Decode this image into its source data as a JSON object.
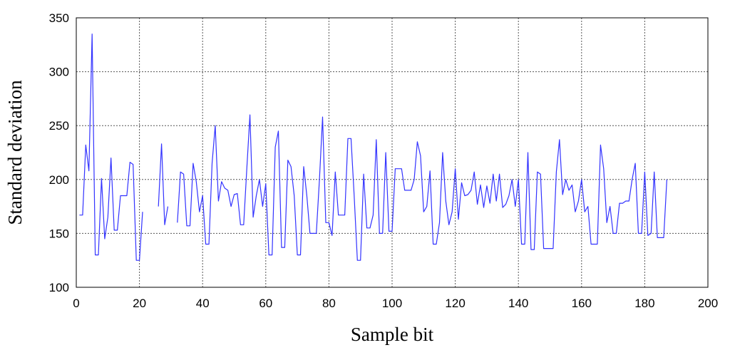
{
  "chart_data": {
    "type": "line",
    "xlabel": "Sample bit",
    "ylabel": "Standard deviation",
    "xlim": [
      0,
      200
    ],
    "ylim": [
      100,
      350
    ],
    "xticks": [
      0,
      20,
      40,
      60,
      80,
      100,
      120,
      140,
      160,
      180,
      200
    ],
    "yticks": [
      100,
      150,
      200,
      250,
      300,
      350
    ],
    "grid": true,
    "series_color": "#3333ff",
    "segments": [
      [
        [
          1,
          167
        ],
        [
          2,
          167
        ],
        [
          3,
          232
        ],
        [
          4,
          208
        ],
        [
          5,
          335
        ],
        [
          6,
          130
        ],
        [
          7,
          130
        ],
        [
          8,
          201
        ],
        [
          9,
          145
        ],
        [
          10,
          165
        ],
        [
          11,
          220
        ],
        [
          12,
          153
        ],
        [
          13,
          153
        ],
        [
          14,
          185
        ],
        [
          15,
          185
        ],
        [
          16,
          185
        ],
        [
          17,
          216
        ],
        [
          18,
          214
        ],
        [
          19,
          125
        ],
        [
          20,
          125
        ],
        [
          21,
          170
        ]
      ],
      [
        [
          26,
          175
        ],
        [
          27,
          233
        ],
        [
          28,
          158
        ],
        [
          29,
          175
        ]
      ],
      [
        [
          32,
          160
        ],
        [
          33,
          207
        ],
        [
          34,
          205
        ],
        [
          35,
          157
        ],
        [
          36,
          157
        ],
        [
          37,
          215
        ],
        [
          38,
          198
        ],
        [
          39,
          170
        ],
        [
          40,
          185
        ],
        [
          41,
          140
        ],
        [
          42,
          140
        ],
        [
          43,
          215
        ],
        [
          44,
          250
        ],
        [
          45,
          180
        ],
        [
          46,
          198
        ],
        [
          47,
          192
        ],
        [
          48,
          190
        ],
        [
          49,
          175
        ],
        [
          50,
          186
        ],
        [
          51,
          187
        ],
        [
          52,
          158
        ],
        [
          53,
          158
        ],
        [
          54,
          210
        ],
        [
          55,
          260
        ],
        [
          56,
          165
        ],
        [
          57,
          185
        ],
        [
          58,
          200
        ],
        [
          59,
          175
        ],
        [
          60,
          196
        ],
        [
          61,
          130
        ],
        [
          62,
          130
        ],
        [
          63,
          230
        ],
        [
          64,
          245
        ],
        [
          65,
          137
        ],
        [
          66,
          137
        ],
        [
          67,
          218
        ],
        [
          68,
          212
        ],
        [
          69,
          185
        ],
        [
          70,
          130
        ],
        [
          71,
          130
        ],
        [
          72,
          212
        ],
        [
          73,
          185
        ],
        [
          74,
          150
        ],
        [
          75,
          150
        ],
        [
          76,
          150
        ],
        [
          77,
          200
        ],
        [
          78,
          258
        ],
        [
          79,
          160
        ],
        [
          80,
          160
        ],
        [
          81,
          148
        ],
        [
          82,
          207
        ],
        [
          83,
          167
        ],
        [
          84,
          167
        ],
        [
          85,
          167
        ],
        [
          86,
          238
        ],
        [
          87,
          238
        ],
        [
          88,
          185
        ],
        [
          89,
          125
        ],
        [
          90,
          125
        ],
        [
          91,
          205
        ],
        [
          92,
          155
        ],
        [
          93,
          155
        ],
        [
          94,
          167
        ],
        [
          95,
          237
        ],
        [
          96,
          150
        ],
        [
          97,
          150
        ],
        [
          98,
          225
        ],
        [
          99,
          152
        ],
        [
          100,
          152
        ],
        [
          101,
          210
        ],
        [
          102,
          210
        ],
        [
          103,
          210
        ],
        [
          104,
          190
        ],
        [
          105,
          190
        ],
        [
          106,
          190
        ],
        [
          107,
          200
        ],
        [
          108,
          235
        ],
        [
          109,
          222
        ],
        [
          110,
          170
        ],
        [
          111,
          175
        ],
        [
          112,
          208
        ],
        [
          113,
          140
        ],
        [
          114,
          140
        ],
        [
          115,
          160
        ],
        [
          116,
          225
        ],
        [
          117,
          180
        ],
        [
          118,
          158
        ],
        [
          119,
          170
        ],
        [
          120,
          210
        ],
        [
          121,
          163
        ],
        [
          122,
          197
        ],
        [
          123,
          185
        ],
        [
          124,
          186
        ],
        [
          125,
          190
        ],
        [
          126,
          207
        ],
        [
          127,
          177
        ],
        [
          128,
          195
        ],
        [
          129,
          174
        ],
        [
          130,
          194
        ],
        [
          131,
          178
        ],
        [
          132,
          205
        ],
        [
          133,
          180
        ],
        [
          134,
          205
        ],
        [
          135,
          174
        ],
        [
          136,
          177
        ],
        [
          137,
          185
        ],
        [
          138,
          200
        ],
        [
          139,
          175
        ],
        [
          140,
          200
        ],
        [
          141,
          140
        ],
        [
          142,
          140
        ],
        [
          143,
          225
        ],
        [
          144,
          135
        ],
        [
          145,
          135
        ],
        [
          146,
          207
        ],
        [
          147,
          205
        ],
        [
          148,
          136
        ],
        [
          149,
          136
        ],
        [
          150,
          136
        ],
        [
          151,
          136
        ],
        [
          152,
          207
        ],
        [
          153,
          237
        ],
        [
          154,
          186
        ],
        [
          155,
          200
        ],
        [
          156,
          190
        ],
        [
          157,
          195
        ],
        [
          158,
          170
        ],
        [
          159,
          180
        ],
        [
          160,
          200
        ],
        [
          161,
          170
        ],
        [
          162,
          175
        ],
        [
          163,
          140
        ],
        [
          164,
          140
        ],
        [
          165,
          140
        ],
        [
          166,
          232
        ],
        [
          167,
          210
        ],
        [
          168,
          160
        ],
        [
          169,
          175
        ],
        [
          170,
          150
        ],
        [
          171,
          150
        ],
        [
          172,
          178
        ],
        [
          173,
          178
        ],
        [
          174,
          180
        ],
        [
          175,
          180
        ],
        [
          176,
          200
        ],
        [
          177,
          215
        ],
        [
          178,
          150
        ],
        [
          179,
          150
        ],
        [
          180,
          207
        ],
        [
          181,
          148
        ],
        [
          182,
          150
        ],
        [
          183,
          207
        ],
        [
          184,
          146
        ],
        [
          185,
          146
        ],
        [
          186,
          146
        ],
        [
          187,
          200
        ]
      ]
    ]
  }
}
